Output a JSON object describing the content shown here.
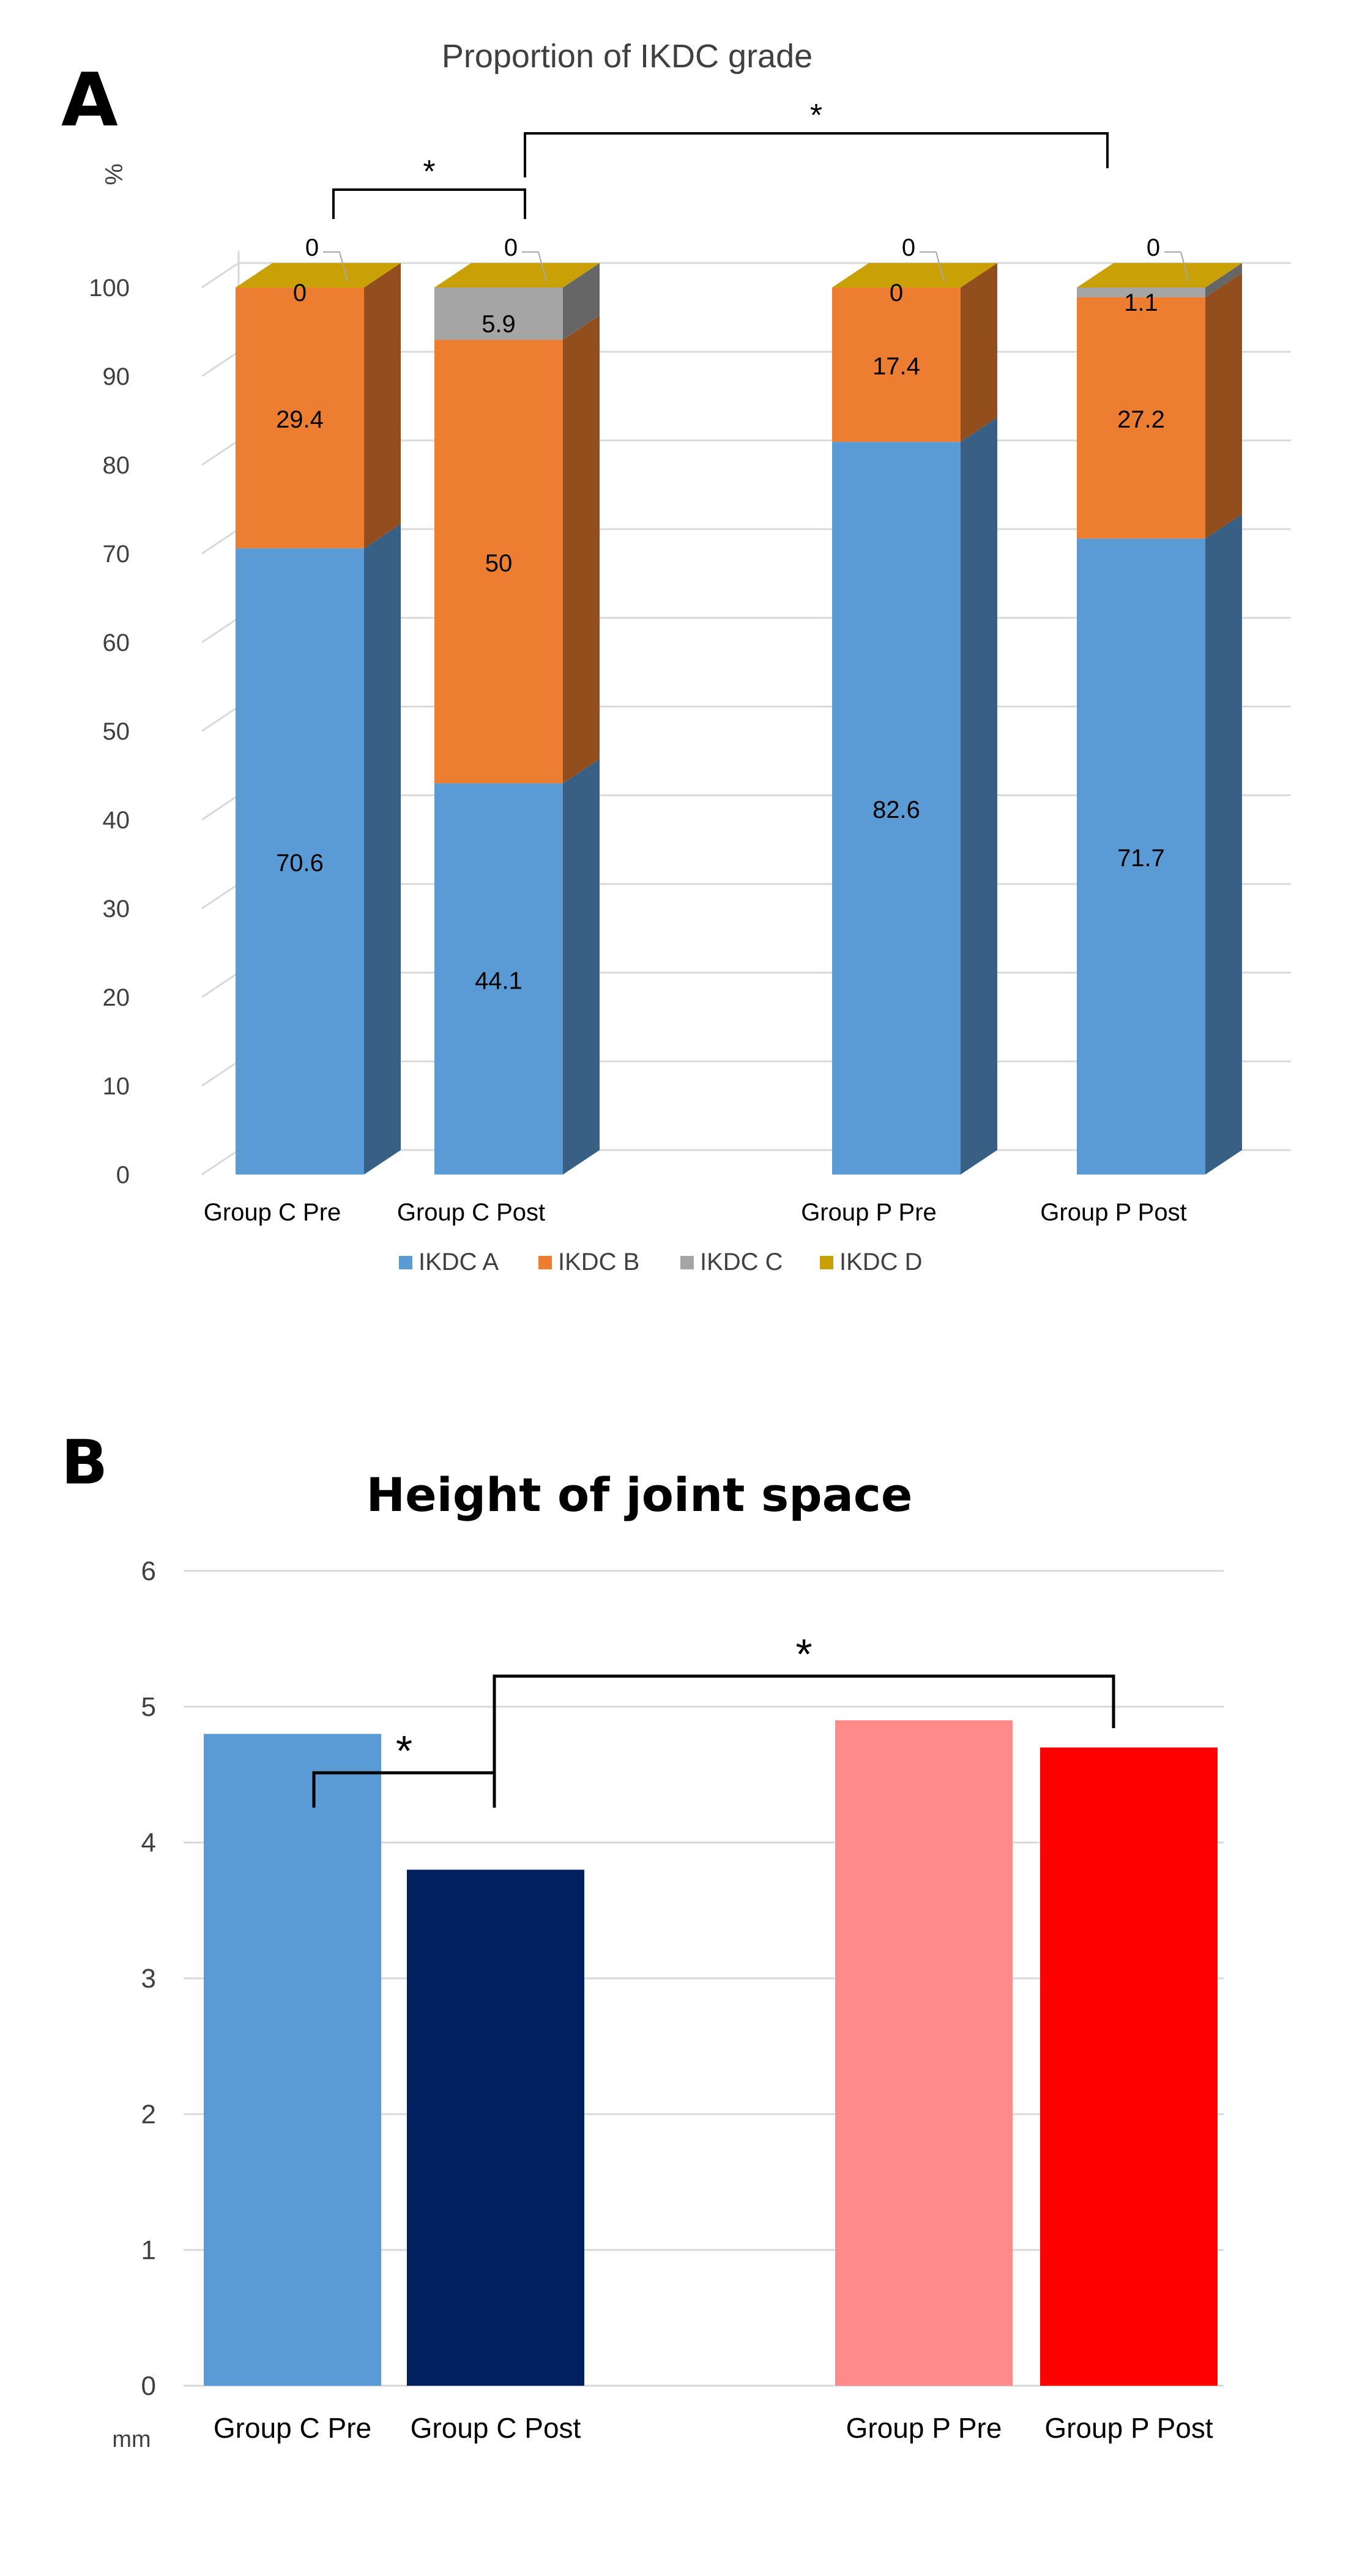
{
  "panels": {
    "a": {
      "letter": "A"
    },
    "b": {
      "letter": "B"
    }
  },
  "colors": {
    "ikdc_a": "#5b9bd5",
    "ikdc_b": "#ed7d31",
    "ikdc_c": "#a5a5a5",
    "ikdc_d": "#c9a106",
    "group_c_pre": "#5b9bd5",
    "group_c_post": "#002060",
    "group_p_pre": "#ff8a8a",
    "group_p_post": "#ff0000",
    "grid": "#d9d9d9",
    "axis_text": "#404040"
  },
  "chart_data": [
    {
      "type": "bar",
      "stacked": true,
      "three_d": true,
      "title": "Proportion of IKDC grade",
      "ylabel": "%",
      "ylim": [
        0,
        100
      ],
      "yticks": [
        0,
        10,
        20,
        30,
        40,
        50,
        60,
        70,
        80,
        90,
        100
      ],
      "categories": [
        "Group C Pre",
        "Group C Post",
        "Group P Pre",
        "Group P Post"
      ],
      "series": [
        {
          "name": "IKDC A",
          "values": [
            70.6,
            44.1,
            82.6,
            71.7
          ],
          "labels": [
            "70.6",
            "44.1",
            "82.6",
            "71.7"
          ],
          "color": "#5b9bd5"
        },
        {
          "name": "IKDC B",
          "values": [
            29.4,
            50,
            17.4,
            27.2
          ],
          "labels": [
            "29.4",
            "50",
            "17.4",
            "27.2"
          ],
          "color": "#ed7d31"
        },
        {
          "name": "IKDC C",
          "values": [
            0,
            5.9,
            0,
            1.1
          ],
          "labels": [
            "0",
            "5.9",
            "0",
            "1.1"
          ],
          "color": "#a5a5a5"
        },
        {
          "name": "IKDC D",
          "values": [
            0,
            0,
            0,
            0
          ],
          "labels": [
            "0",
            "0",
            "0",
            "0"
          ],
          "color": "#c9a106"
        }
      ],
      "legend_position": "bottom",
      "grid": true,
      "significance": [
        {
          "from": "Group C Pre",
          "to": "Group C Post",
          "label": "*"
        },
        {
          "from": "Group C Post",
          "to": "Group P Post",
          "label": "*"
        }
      ]
    },
    {
      "type": "bar",
      "title": "Height of joint space",
      "ylabel": "mm",
      "ylim": [
        0,
        6
      ],
      "yticks": [
        0,
        1,
        2,
        3,
        4,
        5,
        6
      ],
      "categories": [
        "Group C  Pre",
        "Group C  Post",
        "Group P  Pre",
        "Group P  Post"
      ],
      "values": [
        4.8,
        3.8,
        4.9,
        4.7
      ],
      "bar_colors": [
        "#5b9bd5",
        "#002060",
        "#ff8a8a",
        "#ff0000"
      ],
      "grid": true,
      "significance": [
        {
          "from": "Group C  Pre",
          "to": "Group C  Post",
          "label": "*"
        },
        {
          "from": "Group C  Post",
          "to": "Group P  Post",
          "label": "*"
        }
      ]
    }
  ]
}
